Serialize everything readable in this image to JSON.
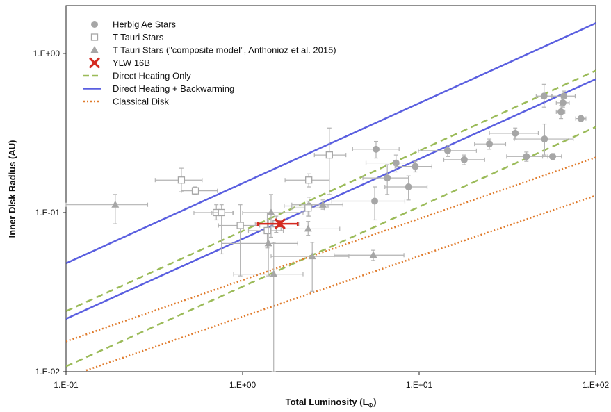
{
  "chart_data": {
    "type": "scatter",
    "title": "",
    "xlabel": "Total Luminosity (L",
    "xlabel_sub": "⊙",
    "xlabel_end": ")",
    "ylabel": "Inner Disk Radius (AU)",
    "xscale": "log",
    "yscale": "log",
    "xlim": [
      0.1,
      100
    ],
    "ylim": [
      0.01,
      2
    ],
    "x_tick_labels": [
      "1.E-01",
      "1.E+00",
      "1.E+01",
      "1.E+02"
    ],
    "x_tick_values": [
      0.1,
      1,
      10,
      100
    ],
    "y_tick_labels": [
      "1.E-02",
      "1.E-01",
      "1.E+00"
    ],
    "y_tick_values": [
      0.01,
      0.1,
      1
    ],
    "grid": false,
    "legend_position": "top-left",
    "legend": [
      {
        "label": "Herbig Ae Stars",
        "marker": "circle",
        "color": "#a6a6a6"
      },
      {
        "label": "T Tauri Stars",
        "marker": "open-square",
        "color": "#a6a6a6"
      },
      {
        "label": "T Tauri Stars (\"composite model\", Anthonioz et al. 2015)",
        "marker": "triangle",
        "color": "#a6a6a6"
      },
      {
        "label": "YLW 16B",
        "marker": "x",
        "color": "#d42a20"
      },
      {
        "label": "Direct Heating Only",
        "line": "dashed",
        "color": "#9bbb59"
      },
      {
        "label": "Direct Heating + Backwarming",
        "line": "solid",
        "color": "#5a5fe0"
      },
      {
        "label": "Classical Disk",
        "line": "dotted",
        "color": "#e07b2c"
      }
    ],
    "lines": [
      {
        "name": "Direct Heating + Backwarming",
        "style": "solid",
        "color": "#5a5fe0",
        "x": [
          0.1,
          100
        ],
        "y": [
          0.048,
          1.55
        ]
      },
      {
        "name": "Direct Heating + Backwarming",
        "style": "solid",
        "color": "#5a5fe0",
        "x": [
          0.1,
          100
        ],
        "y": [
          0.0215,
          0.69
        ]
      },
      {
        "name": "Direct Heating Only",
        "style": "dashed",
        "color": "#9bbb59",
        "x": [
          0.1,
          100
        ],
        "y": [
          0.024,
          0.78
        ]
      },
      {
        "name": "Direct Heating Only",
        "style": "dashed",
        "color": "#9bbb59",
        "x": [
          0.1,
          100
        ],
        "y": [
          0.0108,
          0.345
        ]
      },
      {
        "name": "Classical Disk",
        "style": "dotted",
        "color": "#e07b2c",
        "x": [
          0.1,
          100
        ],
        "y": [
          0.0155,
          0.222
        ]
      },
      {
        "name": "Classical Disk",
        "style": "dotted",
        "color": "#e07b2c",
        "x": [
          0.13,
          100
        ],
        "y": [
          0.0102,
          0.128
        ]
      }
    ],
    "series": [
      {
        "name": "Herbig Ae Stars",
        "marker": "circle",
        "color": "#a6a6a6",
        "points": [
          {
            "x": 5.7,
            "y": 0.25,
            "xerr": [
              4.2,
              7.7
            ],
            "yerr": [
              0.22,
              0.28
            ]
          },
          {
            "x": 7.4,
            "y": 0.205,
            "xerr": [
              5.0,
              9.4
            ],
            "yerr": [
              0.18,
              0.23
            ]
          },
          {
            "x": 9.5,
            "y": 0.195,
            "xerr": [
              7.3,
              11.8
            ],
            "yerr": [
              0.18,
              0.21
            ]
          },
          {
            "x": 6.6,
            "y": 0.165,
            "xerr": [
              4.8,
              8.7
            ],
            "yerr": [
              0.13,
              0.2
            ]
          },
          {
            "x": 8.7,
            "y": 0.145,
            "xerr": [
              6.4,
              11.1
            ],
            "yerr": [
              0.12,
              0.17
            ]
          },
          {
            "x": 5.6,
            "y": 0.118,
            "xerr": [
              3.2,
              8.3
            ],
            "yerr": [
              0.09,
              0.145
            ]
          },
          {
            "x": 14.5,
            "y": 0.245,
            "xerr": [
              9.9,
              21.1
            ],
            "yerr": [
              0.225,
              0.265
            ]
          },
          {
            "x": 18.0,
            "y": 0.215,
            "xerr": [
              13.8,
              23.5
            ],
            "yerr": [
              0.2,
              0.23
            ]
          },
          {
            "x": 25.0,
            "y": 0.27,
            "xerr": [
              20.6,
              30.9
            ],
            "yerr": [
              0.25,
              0.29
            ]
          },
          {
            "x": 35.0,
            "y": 0.315,
            "xerr": [
              25.0,
              47.3
            ],
            "yerr": [
              0.29,
              0.34
            ]
          },
          {
            "x": 40.5,
            "y": 0.225,
            "xerr": [
              31.3,
              53.5
            ],
            "yerr": [
              0.21,
              0.24
            ]
          },
          {
            "x": 51.3,
            "y": 0.29,
            "xerr": [
              34.6,
              74.6
            ],
            "yerr": [
              0.23,
              0.36
            ]
          },
          {
            "x": 57.0,
            "y": 0.225,
            "xerr": [
              50.0,
              64.0
            ],
            "yerr": [
              0.215,
              0.235
            ]
          },
          {
            "x": 51.0,
            "y": 0.54,
            "xerr": [
              46.0,
              56.6
            ],
            "yerr": [
              0.46,
              0.64
            ]
          },
          {
            "x": 66.0,
            "y": 0.54,
            "xerr": [
              56.0,
              76.5
            ],
            "yerr": [
              0.5,
              0.58
            ]
          },
          {
            "x": 65.2,
            "y": 0.49,
            "xerr": [
              59.8,
              70.8
            ],
            "yerr": [
              0.46,
              0.52
            ]
          },
          {
            "x": 63.6,
            "y": 0.43,
            "xerr": [
              59.8,
              66.9
            ],
            "yerr": [
              0.39,
              0.47
            ]
          },
          {
            "x": 82.5,
            "y": 0.39,
            "xerr": [
              77.0,
              88.0
            ],
            "yerr": [
              0.375,
              0.405
            ]
          },
          {
            "x": 2.38,
            "y": 0.11,
            "xerr": [
              1.72,
              3.05
            ],
            "yerr": [
              0.095,
              0.125
            ]
          }
        ]
      },
      {
        "name": "T Tauri Stars",
        "marker": "open-square",
        "color": "#a6a6a6",
        "points": [
          {
            "x": 0.45,
            "y": 0.16,
            "xerr": [
              0.32,
              0.59
            ],
            "yerr": [
              0.135,
              0.19
            ]
          },
          {
            "x": 0.54,
            "y": 0.137,
            "xerr": [
              0.45,
              0.72
            ],
            "yerr": [
              0.13,
              0.145
            ]
          },
          {
            "x": 3.1,
            "y": 0.23,
            "xerr": [
              2.55,
              3.85
            ],
            "yerr": [
              0.13,
              0.34
            ]
          },
          {
            "x": 2.37,
            "y": 0.16,
            "xerr": [
              1.74,
              3.1
            ],
            "yerr": [
              0.145,
              0.175
            ]
          },
          {
            "x": 0.71,
            "y": 0.1,
            "xerr": [
              0.53,
              0.89
            ],
            "yerr": [
              0.09,
              0.112
            ]
          },
          {
            "x": 0.76,
            "y": 0.1,
            "xerr": [
              0.67,
              0.88
            ],
            "yerr": [
              0.055,
              0.112
            ]
          },
          {
            "x": 0.97,
            "y": 0.083,
            "xerr": [
              0.73,
              1.25
            ],
            "yerr": [
              0.04,
              0.112
            ]
          },
          {
            "x": 1.38,
            "y": 0.077,
            "xerr": [
              1.08,
              1.7
            ],
            "yerr": [
              0.06,
              0.1
            ]
          },
          {
            "x": 2.35,
            "y": 0.107,
            "xerr": [
              1.9,
              2.9
            ],
            "yerr": [
              0.095,
              0.118
            ]
          },
          {
            "x": 1.55,
            "y": 0.085,
            "xerr": [
              1.18,
              2.08
            ],
            "yerr": [
              0.075,
              0.095
            ]
          }
        ]
      },
      {
        "name": "T Tauri Stars (\"composite model\", Anthonioz et al. 2015)",
        "marker": "triangle",
        "color": "#a6a6a6",
        "points": [
          {
            "x": 0.19,
            "y": 0.112,
            "xerr": [
              0.1,
              0.29
            ],
            "yerr": [
              0.085,
              0.13
            ]
          },
          {
            "x": 1.45,
            "y": 0.1,
            "xerr": [
              1.0,
              2.2
            ],
            "yerr": [
              0.07,
              0.13
            ]
          },
          {
            "x": 1.4,
            "y": 0.064,
            "xerr": [
              0.76,
              2.05
            ],
            "yerr": [
              0.04,
              0.09
            ]
          },
          {
            "x": 1.5,
            "y": 0.041,
            "xerr": [
              0.89,
              2.2
            ],
            "yerr": [
              0.01,
              0.065
            ]
          },
          {
            "x": 2.35,
            "y": 0.079,
            "xerr": [
              1.65,
              3.55
            ],
            "yerr": [
              0.072,
              0.088
            ]
          },
          {
            "x": 2.48,
            "y": 0.053,
            "xerr": [
              1.45,
              4.0
            ],
            "yerr": [
              0.032,
              0.065
            ]
          },
          {
            "x": 2.85,
            "y": 0.112,
            "xerr": [
              1.9,
              3.7
            ],
            "yerr": [
              0.105,
              0.12
            ]
          },
          {
            "x": 5.5,
            "y": 0.054,
            "xerr": [
              3.3,
              8.2
            ],
            "yerr": [
              0.05,
              0.058
            ]
          }
        ]
      },
      {
        "name": "YLW 16B",
        "marker": "x",
        "color": "#d42a20",
        "points": [
          {
            "x": 1.63,
            "y": 0.085,
            "xerr": [
              1.22,
              2.05
            ],
            "yerr": [
              0.082,
              0.088
            ]
          }
        ]
      }
    ]
  }
}
